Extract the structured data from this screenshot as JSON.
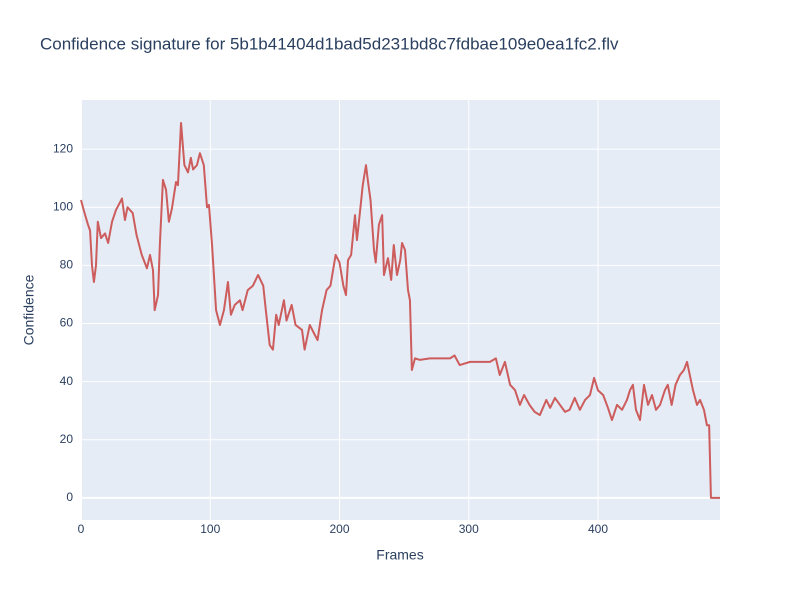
{
  "chart_data": {
    "type": "line",
    "title": "Confidence signature for 5b1b41404d1bad5d231bd8c7fdbae109e0ea1fc2.flv",
    "x_label": "Frames",
    "y_label": "Confidence",
    "color": "#cd5c5c",
    "grid": true,
    "xlim": [
      0,
      494.4
    ],
    "ylim": [
      -7.6,
      136.9
    ],
    "xticks": [
      0,
      100,
      200,
      300,
      400
    ],
    "yticks": [
      0,
      20,
      40,
      60,
      80,
      100,
      120
    ],
    "x": [
      0,
      2.3,
      5.4,
      7,
      8.5,
      10,
      11.6,
      13,
      15.5,
      18.6,
      21,
      24,
      27,
      31.7,
      34,
      36,
      40,
      43,
      47,
      51,
      53.4,
      55.7,
      57,
      59.6,
      61,
      63.4,
      65.8,
      68,
      70.4,
      73.5,
      75,
      77.4,
      80,
      82.8,
      85,
      86.7,
      89.7,
      92,
      95,
      97.5,
      99,
      101.4,
      104.5,
      107.5,
      110.6,
      113.7,
      116,
      119,
      123,
      125,
      129,
      133,
      137,
      141,
      143,
      146,
      148.5,
      151,
      153,
      157,
      159,
      163,
      166,
      171,
      173,
      177,
      181,
      183,
      186.5,
      190,
      193,
      197,
      200,
      203,
      205,
      206.6,
      209,
      212,
      213.5,
      216,
      218,
      220.5,
      222,
      224,
      226.7,
      228,
      230.5,
      233,
      234.4,
      237.5,
      240,
      242,
      244.5,
      247,
      248.4,
      250.7,
      253,
      254.5,
      256,
      258.4,
      262,
      270,
      285.5,
      289,
      293,
      301,
      316.4,
      321,
      324,
      328,
      332,
      335.8,
      339.6,
      342.8,
      347,
      351,
      355,
      360,
      363,
      366.7,
      370.6,
      374.5,
      378,
      382,
      386,
      390,
      393.8,
      397,
      400,
      404,
      407.7,
      410.8,
      414.7,
      418.6,
      422.4,
      424.8,
      427,
      429.4,
      432.5,
      435.6,
      438.7,
      441.8,
      444.9,
      448,
      451.8,
      454,
      457,
      460,
      463.4,
      466.5,
      468.9,
      471,
      473.5,
      476.6,
      479,
      482,
      484.3,
      486,
      487.4,
      494.4
    ],
    "values": [
      102.5,
      98.7,
      94,
      92,
      80,
      74.3,
      80,
      95,
      89.4,
      91,
      87.7,
      95,
      99,
      103,
      95.6,
      100,
      98,
      90.4,
      83.6,
      79,
      83.6,
      78.4,
      64.6,
      69.8,
      87,
      109.4,
      106,
      95,
      99.7,
      108.7,
      107.6,
      129,
      114.5,
      112,
      117,
      113,
      114.5,
      118.6,
      114.5,
      100,
      100.8,
      87,
      64.6,
      59.5,
      64.6,
      74.3,
      63,
      66.4,
      68,
      64.6,
      71.5,
      73,
      76.7,
      73,
      64.6,
      52.6,
      51,
      63,
      59.5,
      68,
      61,
      66.4,
      59.5,
      57.8,
      51,
      59.5,
      56,
      54.3,
      64.6,
      71.5,
      73,
      83.6,
      81,
      73,
      69.8,
      81.8,
      83.6,
      97.3,
      88.7,
      99,
      107.6,
      114.5,
      109,
      102.5,
      85.3,
      81,
      94,
      97.3,
      76.7,
      82.5,
      75,
      87,
      76.7,
      81.8,
      87.7,
      85.3,
      71.5,
      68,
      44,
      48,
      47.5,
      48,
      48,
      49,
      45.7,
      46.8,
      46.8,
      48,
      42.3,
      46.8,
      38.9,
      37.1,
      32,
      35.4,
      32,
      29.6,
      28.5,
      33.7,
      31,
      34.4,
      32,
      29.6,
      30.3,
      34.4,
      30.3,
      33.7,
      35.4,
      41.3,
      37,
      35.4,
      31,
      26.8,
      32,
      30.3,
      33.7,
      37.1,
      38.9,
      30.3,
      26.8,
      38.9,
      32,
      35.4,
      30.3,
      32,
      37.1,
      38.9,
      32,
      38.9,
      42.3,
      44,
      46.8,
      42.3,
      37.1,
      32,
      33.7,
      30.3,
      25,
      25,
      0,
      0
    ]
  }
}
